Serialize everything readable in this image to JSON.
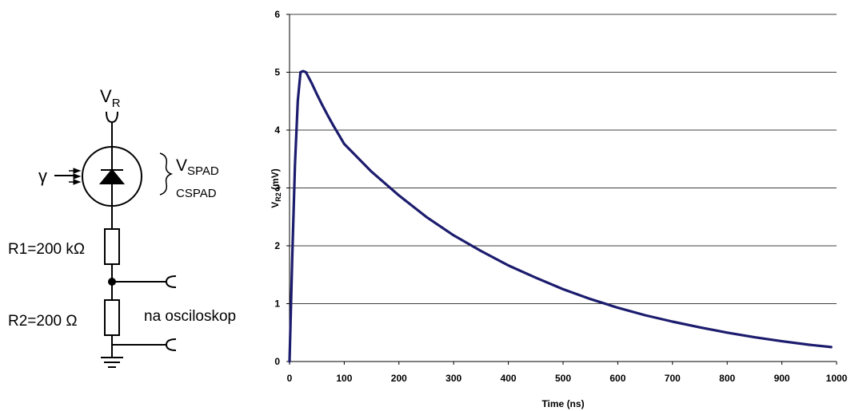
{
  "circuit": {
    "vr_main": "V",
    "vr_sub": "R",
    "gamma": "γ",
    "vspad_main": "V",
    "vspad_sub": "SPAD",
    "cspad": "CSPAD",
    "r1_label": "R1=200 kΩ",
    "r2_label": "R2=200 Ω",
    "scope_label": "na osciloskop"
  },
  "chart_data": {
    "type": "line",
    "title": "",
    "xlabel": "Time (ns)",
    "ylabel_main": "V",
    "ylabel_sub": "R2",
    "ylabel_unit": " (mV)",
    "xlim": [
      0,
      1000
    ],
    "ylim": [
      0,
      6
    ],
    "xticks": [
      0,
      100,
      200,
      300,
      400,
      500,
      600,
      700,
      800,
      900,
      1000
    ],
    "yticks": [
      0,
      1,
      2,
      3,
      4,
      5,
      6
    ],
    "grid": "horizontal",
    "line_color": "#1c1c6e",
    "series": [
      {
        "x": [
          0,
          5,
          10,
          15,
          20,
          25,
          30,
          40,
          50,
          60,
          70,
          80,
          90,
          100,
          150,
          200,
          250,
          300,
          350,
          400,
          450,
          500,
          550,
          600,
          650,
          700,
          750,
          800,
          850,
          900,
          950,
          990
        ],
        "values": [
          0,
          1.8,
          3.4,
          4.5,
          5.0,
          5.02,
          5.0,
          4.82,
          4.62,
          4.43,
          4.25,
          4.08,
          3.92,
          3.76,
          3.28,
          2.87,
          2.5,
          2.18,
          1.91,
          1.66,
          1.45,
          1.25,
          1.08,
          0.93,
          0.8,
          0.69,
          0.59,
          0.5,
          0.42,
          0.35,
          0.29,
          0.25
        ]
      }
    ]
  }
}
